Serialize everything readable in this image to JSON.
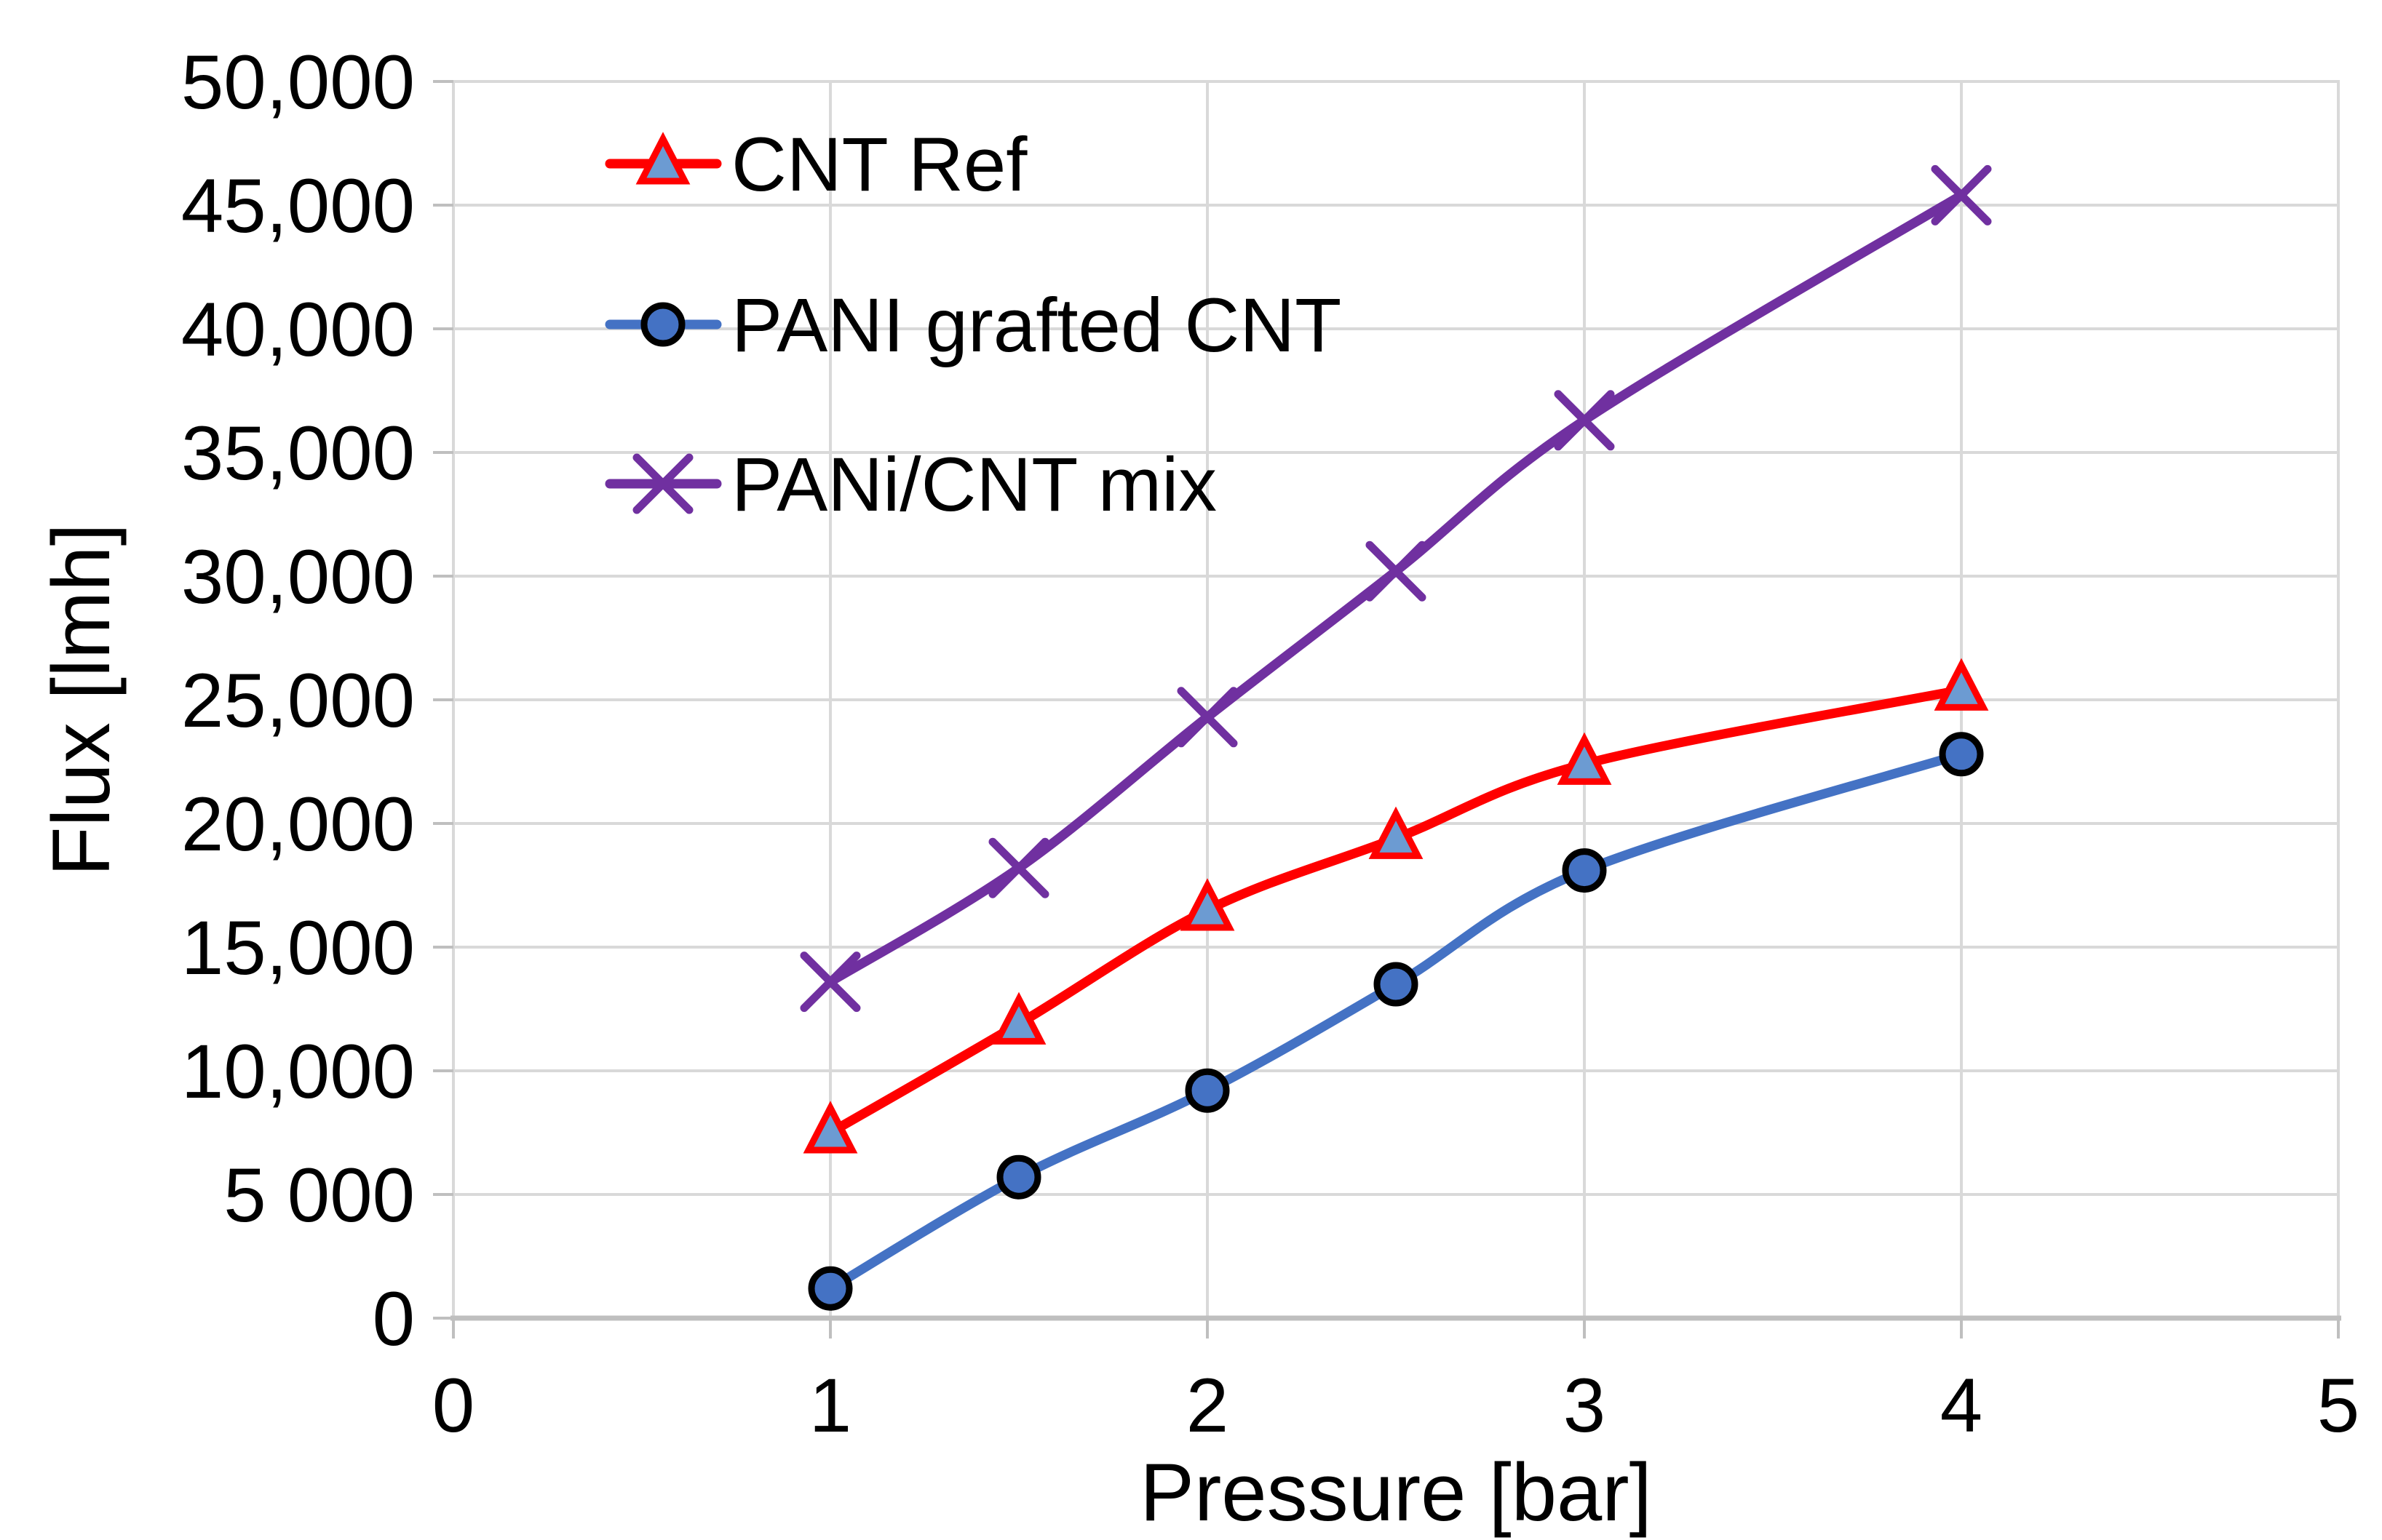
{
  "chart_data": {
    "type": "line",
    "x": [
      1,
      1.5,
      2,
      2.5,
      3,
      4
    ],
    "series": [
      {
        "name": "CNT Ref",
        "values": [
          7500,
          11900,
          16500,
          19400,
          22400,
          25400
        ],
        "color": "#FF0000",
        "marker": "triangle",
        "marker_fill": "#6C9BD2",
        "marker_edge": "#FF0000"
      },
      {
        "name": "PANI grafted CNT",
        "values": [
          1200,
          5700,
          9200,
          13500,
          18100,
          22800
        ],
        "color": "#4472C4",
        "marker": "circle",
        "marker_fill": "#4472C4",
        "marker_edge": "#000000"
      },
      {
        "name": "PANi/CNT mix",
        "values": [
          13600,
          18200,
          24300,
          30200,
          36300,
          45400
        ],
        "color": "#7030A0",
        "marker": "x",
        "marker_fill": "#7030A0",
        "marker_edge": "#7030A0"
      }
    ],
    "xlabel": "Pressure [bar]",
    "ylabel": "Flux [lmh]",
    "xlim": [
      0,
      5
    ],
    "ylim": [
      0,
      50000
    ],
    "x_ticks": [
      0,
      1,
      2,
      3,
      4,
      5
    ],
    "x_tick_labels": [
      "0",
      "1",
      "2",
      "3",
      "4",
      "5"
    ],
    "y_ticks": [
      0,
      5000,
      10000,
      15000,
      20000,
      25000,
      30000,
      35000,
      40000,
      45000,
      50000
    ],
    "y_tick_labels": [
      "0",
      "5 000",
      "10,000",
      "15,000",
      "20,000",
      "25,000",
      "30,000",
      "35,000",
      "40,000",
      "45,000",
      "50,000"
    ],
    "grid": true,
    "legend_position": "top-left-inside",
    "colors": {
      "gridline": "#D9D9D9",
      "plot_border": "#D9D9D9",
      "axis_line": "#BFBFBF",
      "text": "#000000",
      "background": "#FFFFFF"
    }
  }
}
